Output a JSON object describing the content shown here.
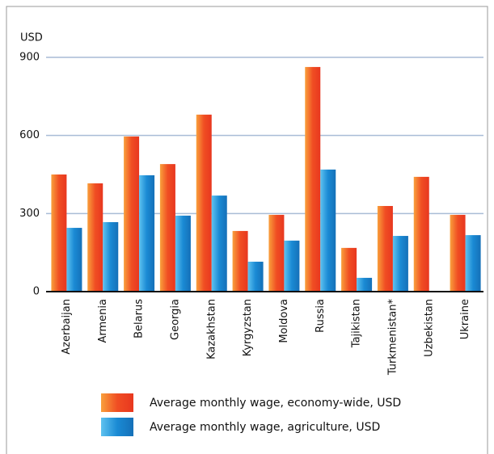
{
  "chart_data": {
    "type": "bar",
    "y_label": "USD",
    "categories": [
      "Azerbaijan",
      "Armenia",
      "Belarus",
      "Georgia",
      "Kazakhstan",
      "Kyrgyzstan",
      "Moldova",
      "Russia",
      "Tajikistan",
      "Turkmenistan*",
      "Uzbekistan",
      "Ukraine"
    ],
    "series": [
      {
        "name": "Average monthly wage, economy-wide, USD",
        "color": "#f04e23",
        "values": [
          450,
          416,
          596,
          490,
          680,
          233,
          295,
          863,
          168,
          329,
          441,
          295
        ]
      },
      {
        "name": "Average monthly wage, agriculture, USD",
        "color": "#1a8ad4",
        "values": [
          245,
          267,
          447,
          292,
          369,
          115,
          196,
          469,
          53,
          214,
          null,
          217
        ]
      }
    ],
    "ylim": [
      0,
      900
    ],
    "yticks": [
      0,
      300,
      600,
      900
    ],
    "grid": true
  }
}
